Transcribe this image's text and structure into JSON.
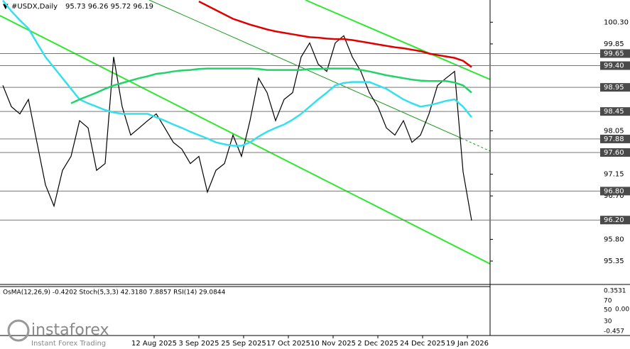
{
  "chart_data": {
    "type": "line",
    "title": "#USDX,Daily",
    "quote": "95.73 96.26 95.72 96.19",
    "ylim": [
      94.88,
      100.76
    ],
    "yticks": [
      {
        "value": 100.3,
        "label": "100.30"
      },
      99.85,
      98.05,
      97.15,
      {
        "value": 96.7,
        "label": "96.70"
      },
      {
        "value": 95.8,
        "label": "95.80"
      },
      95.35
    ],
    "levels": [
      99.65,
      {
        "value": 99.4,
        "label": "99.40"
      },
      98.95,
      98.45,
      97.88,
      {
        "value": 97.6,
        "label": "97.60"
      },
      {
        "value": 96.8,
        "label": "96.80"
      },
      {
        "value": 96.2,
        "label": "96.20"
      }
    ],
    "x_labels": [
      "12 Aug 2025",
      "3 Sep 2025",
      "25 Sep 2025",
      "17 Oct 2025",
      "10 Nov 2025",
      "2 Dec 2025",
      "24 Dec 2025",
      "19 Jan 2026"
    ],
    "series": [
      {
        "color": "#000000",
        "values": [
          98.99,
          98.55,
          98.4,
          98.7,
          97.81,
          96.93,
          96.49,
          97.23,
          97.52,
          98.26,
          98.11,
          97.23,
          97.37,
          99.58,
          98.55,
          97.96,
          98.11,
          98.26,
          98.4,
          98.11,
          97.81,
          97.67,
          97.37,
          97.52,
          96.78,
          97.23,
          97.37,
          97.96,
          97.52,
          98.26,
          99.14,
          98.84,
          98.26,
          98.7,
          98.84,
          99.58,
          99.87,
          99.43,
          99.28,
          99.87,
          100.02,
          99.58,
          99.28,
          98.84,
          98.55,
          98.11,
          97.96,
          98.26,
          97.81,
          97.96,
          98.4,
          98.99,
          99.14,
          99.28,
          97.2,
          96.19
        ]
      },
      {
        "color": "#33e0f0",
        "values": [
          100.75,
          100.53,
          100.34,
          100.17,
          99.87,
          99.58,
          99.36,
          99.14,
          98.92,
          98.7,
          98.62,
          98.55,
          98.48,
          98.43,
          98.4,
          98.4,
          98.4,
          98.4,
          98.33,
          98.26,
          98.18,
          98.11,
          98.03,
          97.96,
          97.89,
          97.81,
          97.77,
          97.74,
          97.74,
          97.81,
          97.93,
          98.03,
          98.11,
          98.18,
          98.28,
          98.4,
          98.55,
          98.7,
          98.84,
          98.99,
          99.04,
          99.06,
          99.06,
          99.06,
          98.99,
          98.92,
          98.81,
          98.7,
          98.62,
          98.55,
          98.58,
          98.62,
          98.67,
          98.7,
          98.55,
          98.33
        ]
      },
      {
        "color": "#22d36a",
        "values": [
          null,
          null,
          null,
          null,
          null,
          null,
          null,
          null,
          98.62,
          98.7,
          98.77,
          98.84,
          98.92,
          98.99,
          99.04,
          99.09,
          99.14,
          99.18,
          99.23,
          99.25,
          99.28,
          99.3,
          99.31,
          99.33,
          99.34,
          99.34,
          99.34,
          99.34,
          99.34,
          99.34,
          99.33,
          99.31,
          99.31,
          99.31,
          99.31,
          99.31,
          99.33,
          99.33,
          99.34,
          99.34,
          99.34,
          99.34,
          99.31,
          99.28,
          99.24,
          99.2,
          99.17,
          99.14,
          99.11,
          99.09,
          99.08,
          99.08,
          99.08,
          99.05,
          98.99,
          98.84
        ]
      },
      {
        "color": "#e00000",
        "values": [
          null,
          null,
          null,
          null,
          null,
          null,
          null,
          null,
          null,
          null,
          null,
          null,
          null,
          null,
          null,
          null,
          null,
          null,
          null,
          null,
          null,
          null,
          null,
          100.73,
          100.64,
          100.55,
          100.46,
          100.37,
          100.31,
          100.25,
          100.2,
          100.15,
          100.11,
          100.08,
          100.05,
          100.02,
          99.99,
          99.98,
          99.96,
          99.95,
          99.95,
          99.93,
          99.9,
          99.87,
          99.84,
          99.81,
          99.78,
          99.76,
          99.73,
          99.7,
          99.65,
          99.62,
          99.59,
          99.56,
          99.5,
          99.37
        ]
      }
    ],
    "indicator_panel": {
      "label": "OsMA(12,26,9) -0.4202  Stoch(5,3,3) 42.3180 7.8857  RSI(14) 29.0844",
      "ticks": [
        "0.3531",
        "70",
        "50",
        "0.00",
        "30",
        "-0.457"
      ]
    },
    "watermark": {
      "brand": "instaforex",
      "tagline": "Instant Forex Trading"
    }
  }
}
